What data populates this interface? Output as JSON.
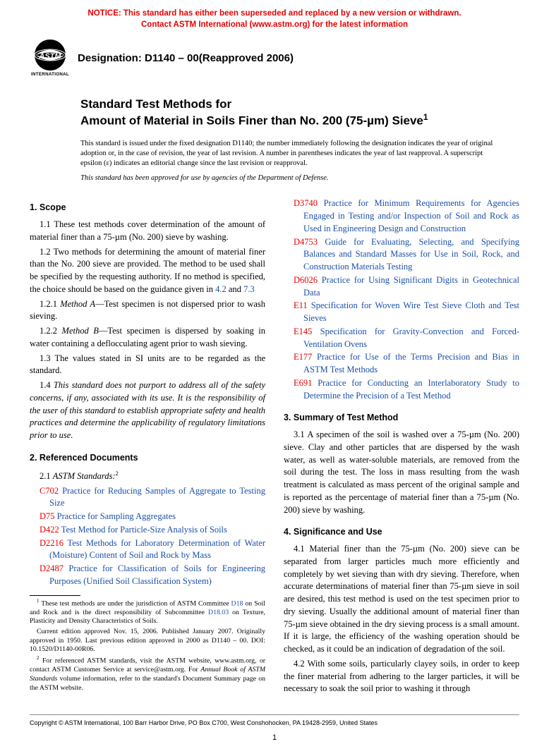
{
  "notice": {
    "line1": "NOTICE: This standard has either been superseded and replaced by a new version or withdrawn.",
    "line2": "Contact ASTM International (www.astm.org) for the latest information"
  },
  "header": {
    "designation_prefix": "Designation: D1140 – 00",
    "designation_suffix": "(Reapproved 2006)",
    "logo_top": "INTERNATIONAL"
  },
  "title": {
    "line1": "Standard Test Methods for",
    "line2": "Amount of Material in Soils Finer than No. 200 (75-µm) Sieve"
  },
  "issued": "This standard is issued under the fixed designation D1140; the number immediately following the designation indicates the year of original adoption or, in the case of revision, the year of last revision. A number in parentheses indicates the year of last reapproval. A superscript epsilon (ε) indicates an editorial change since the last revision or reapproval.",
  "dod": "This standard has been approved for use by agencies of the Department of Defense.",
  "left": {
    "scope_head": "1. Scope",
    "p11": "1.1 These test methods cover determination of the amount of material finer than a 75-µm (No. 200) sieve by washing.",
    "p12a": "1.2 Two methods for determining the amount of material finer than the No. 200 sieve are provided. The method to be used shall be specified by the requesting authority. If no method is specified, the choice should be based on the guidance given in ",
    "p12_ref1": "4.2",
    "p12_and": " and ",
    "p12_ref2": "7.3",
    "p121_a": "1.2.1 ",
    "p121_b": "Method A",
    "p121_c": "—Test specimen is not dispersed prior to wash sieving.",
    "p122_a": "1.2.2 ",
    "p122_b": "Method B",
    "p122_c": "—Test specimen is dispersed by soaking in water containing a deflocculating agent prior to wash sieving.",
    "p13": "1.3 The values stated in SI units are to be regarded as the standard.",
    "p14": "1.4 This standard does not purport to address all of the safety concerns, if any, associated with its use. It is the responsibility of the user of this standard to establish appropriate safety and health practices and determine the applicability of regulatory limitations prior to use.",
    "refs_head": "2. Referenced Documents",
    "astm_std_a": "2.1 ",
    "astm_std_b": "ASTM Standards:",
    "refs": [
      {
        "code": "C702",
        "title": " Practice for Reducing Samples of Aggregate to Testing Size"
      },
      {
        "code": "D75",
        "title": " Practice for Sampling Aggregates"
      },
      {
        "code": "D422",
        "title": " Test Method for Particle-Size Analysis of Soils"
      },
      {
        "code": "D2216",
        "title": " Test Methods for Laboratory Determination of Water (Moisture) Content of Soil and Rock by Mass"
      },
      {
        "code": "D2487",
        "title": " Practice for Classification of Soils for Engineering Purposes (Unified Soil Classification System)"
      }
    ],
    "fn1_a": " These test methods are under the jurisdiction of ASTM Committee ",
    "fn1_ref1": "D18",
    "fn1_b": " on Soil and Rock and is the direct responsibility of Subcommittee ",
    "fn1_ref2": "D18.03",
    "fn1_c": " on Texture, Plasticity and Density Characteristics of Soils.",
    "fn1_d": "Current edition approved Nov. 15, 2006. Published January 2007. Originally approved in 1950. Last previous edition approved in 2000 as D1140 – 00. DOI: 10.1520/D1140-00R06.",
    "fn2_a": " For referenced ASTM standards, visit the ASTM website, www.astm.org, or contact ASTM Customer Service at service@astm.org. For ",
    "fn2_b": "Annual Book of ASTM Standards",
    "fn2_c": " volume information, refer to the standard's Document Summary page on the ASTM website."
  },
  "right": {
    "refs": [
      {
        "code": "D3740",
        "title": " Practice for Minimum Requirements for Agencies Engaged in Testing and/or Inspection of Soil and Rock as Used in Engineering Design and Construction"
      },
      {
        "code": "D4753",
        "title": " Guide for Evaluating, Selecting, and Specifying Balances and Standard Masses for Use in Soil, Rock, and Construction Materials Testing"
      },
      {
        "code": "D6026",
        "title": " Practice for Using Significant Digits in Geotechnical Data"
      },
      {
        "code": "E11",
        "title": " Specification for Woven Wire Test Sieve Cloth and Test Sieves"
      },
      {
        "code": "E145",
        "title": " Specification for Gravity-Convection and Forced-Ventilation Ovens"
      },
      {
        "code": "E177",
        "title": " Practice for Use of the Terms Precision and Bias in ASTM Test Methods"
      },
      {
        "code": "E691",
        "title": " Practice for Conducting an Interlaboratory Study to Determine the Precision of a Test Method"
      }
    ],
    "summary_head": "3. Summary of Test Method",
    "p31": "3.1 A specimen of the soil is washed over a 75-µm (No. 200) sieve. Clay and other particles that are dispersed by the wash water, as well as water-soluble materials, are removed from the soil during the test. The loss in mass resulting from the wash treatment is calculated as mass percent of the original sample and is reported as the percentage of material finer than a 75-µm (No. 200) sieve by washing.",
    "sig_head": "4. Significance and Use",
    "p41": "4.1 Material finer than the 75-µm (No. 200) sieve can be separated from larger particles much more efficiently and completely by wet sieving than with dry sieving. Therefore, when accurate determinations of material finer than 75-µm sieve in soil are desired, this test method is used on the test specimen prior to dry sieving. Usually the additional amount of material finer than 75-µm sieve obtained in the dry sieving process is a small amount. If it is large, the efficiency of the washing operation should be checked, as it could be an indication of degradation of the soil.",
    "p42": "4.2 With some soils, particularly clayey soils, in order to keep the finer material from adhering to the larger particles, it will be necessary to soak the soil prior to washing it through"
  },
  "footer": {
    "copyright": "Copyright © ASTM International, 100 Barr Harbor Drive, PO Box C700, West Conshohocken, PA 19428-2959, United States",
    "page": "1"
  }
}
